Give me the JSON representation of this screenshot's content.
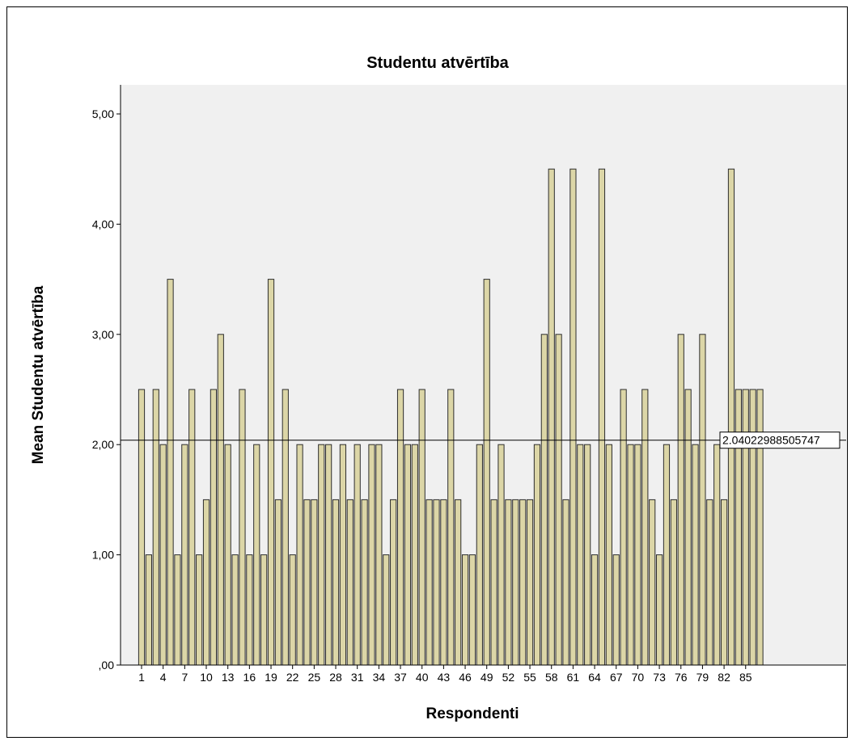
{
  "chart_data": {
    "type": "bar",
    "title": "Studentu atvērtība",
    "xlabel": "Respondenti",
    "ylabel": "Mean Studentu atvērtība",
    "ylim": [
      0,
      5.25
    ],
    "yticks": [
      {
        "value": 0,
        "label": ",00"
      },
      {
        "value": 1,
        "label": "1,00"
      },
      {
        "value": 2,
        "label": "2,00"
      },
      {
        "value": 3,
        "label": "3,00"
      },
      {
        "value": 4,
        "label": "4,00"
      },
      {
        "value": 5,
        "label": "5,00"
      }
    ],
    "x_tick_labels": [
      "1",
      "4",
      "7",
      "10",
      "13",
      "16",
      "19",
      "22",
      "25",
      "28",
      "31",
      "34",
      "37",
      "40",
      "43",
      "46",
      "49",
      "52",
      "55",
      "58",
      "61",
      "64",
      "67",
      "70",
      "73",
      "76",
      "79",
      "82",
      "85"
    ],
    "categories": [
      "1",
      "2",
      "3",
      "4",
      "5",
      "6",
      "7",
      "8",
      "9",
      "10",
      "11",
      "12",
      "13",
      "14",
      "15",
      "16",
      "17",
      "18",
      "19",
      "20",
      "21",
      "22",
      "23",
      "24",
      "25",
      "26",
      "27",
      "28",
      "29",
      "30",
      "31",
      "32",
      "33",
      "34",
      "35",
      "36",
      "37",
      "38",
      "39",
      "40",
      "41",
      "42",
      "43",
      "44",
      "45",
      "46",
      "47",
      "48",
      "49",
      "50",
      "51",
      "52",
      "53",
      "54",
      "55",
      "56",
      "57",
      "58",
      "59",
      "60",
      "61",
      "62",
      "63",
      "64",
      "65",
      "66",
      "67",
      "68",
      "69",
      "70",
      "71",
      "72",
      "73",
      "74",
      "75",
      "76",
      "77",
      "78",
      "79",
      "80",
      "81",
      "82",
      "83",
      "84",
      "85",
      "86",
      "87"
    ],
    "values": [
      2.5,
      1,
      2.5,
      2,
      3.5,
      1,
      2,
      2.5,
      1,
      1.5,
      2.5,
      3,
      2,
      1,
      2.5,
      1,
      2,
      1,
      3.5,
      1.5,
      2.5,
      1,
      2,
      1.5,
      1.5,
      2,
      2,
      1.5,
      2,
      1.5,
      2,
      1.5,
      2,
      2,
      1,
      1.5,
      2.5,
      2,
      2,
      2.5,
      1.5,
      1.5,
      1.5,
      2.5,
      1.5,
      1,
      1,
      2,
      3.5,
      1.5,
      2,
      1.5,
      1.5,
      1.5,
      1.5,
      2,
      3,
      4.5,
      3,
      1.5,
      4.5,
      2,
      2,
      1,
      4.5,
      2,
      1,
      2.5,
      2,
      2,
      2.5,
      1.5,
      1,
      2,
      1.5,
      3,
      2.5,
      2,
      3,
      1.5,
      2,
      1.5,
      4.5,
      2.5,
      2.5,
      2.5,
      2.5
    ],
    "reference_line": {
      "value": 2.04022988505747,
      "label": "2.04022988505747"
    },
    "grid": false,
    "colors": {
      "bar_fill": "#dcd6a7",
      "bar_stroke": "#2d2d2d",
      "plot_bg": "#f0f0f0",
      "axis": "#000000"
    }
  }
}
